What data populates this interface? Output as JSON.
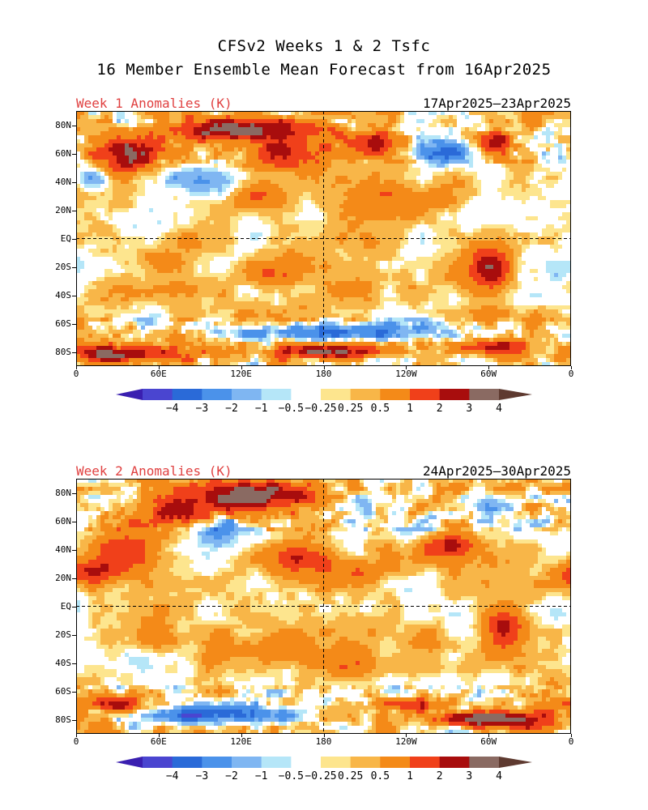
{
  "titles": {
    "line1": "CFSv2 Weeks 1 & 2 Tsfc",
    "line2": "16 Member Ensemble Mean Forecast from 16Apr2025"
  },
  "panels": [
    {
      "label": "Week 1 Anomalies (K)",
      "date_range": "17Apr2025—23Apr2025"
    },
    {
      "label": "Week 2 Anomalies (K)",
      "date_range": "24Apr2025—30Apr2025"
    }
  ],
  "axes": {
    "lat_labels": [
      "80N",
      "60N",
      "40N",
      "20N",
      "EQ",
      "20S",
      "40S",
      "60S",
      "80S"
    ],
    "lon_labels": [
      "0",
      "60E",
      "120E",
      "180",
      "120W",
      "60W",
      "0"
    ]
  },
  "colorbar": {
    "labels": [
      "−4",
      "−3",
      "−2",
      "−1",
      "−0.5",
      "−0.25",
      "0.25",
      "0.5",
      "1",
      "2",
      "3",
      "4"
    ],
    "colors": [
      "#3a1fb0",
      "#4a45d0",
      "#2a6ad8",
      "#4b92ea",
      "#7fb6f2",
      "#b5e6f8",
      "#ffffff",
      "#fde58e",
      "#f8b648",
      "#f48a18",
      "#f0401a",
      "#a80d0d",
      "#8a6a62",
      "#5e3a30"
    ]
  }
}
